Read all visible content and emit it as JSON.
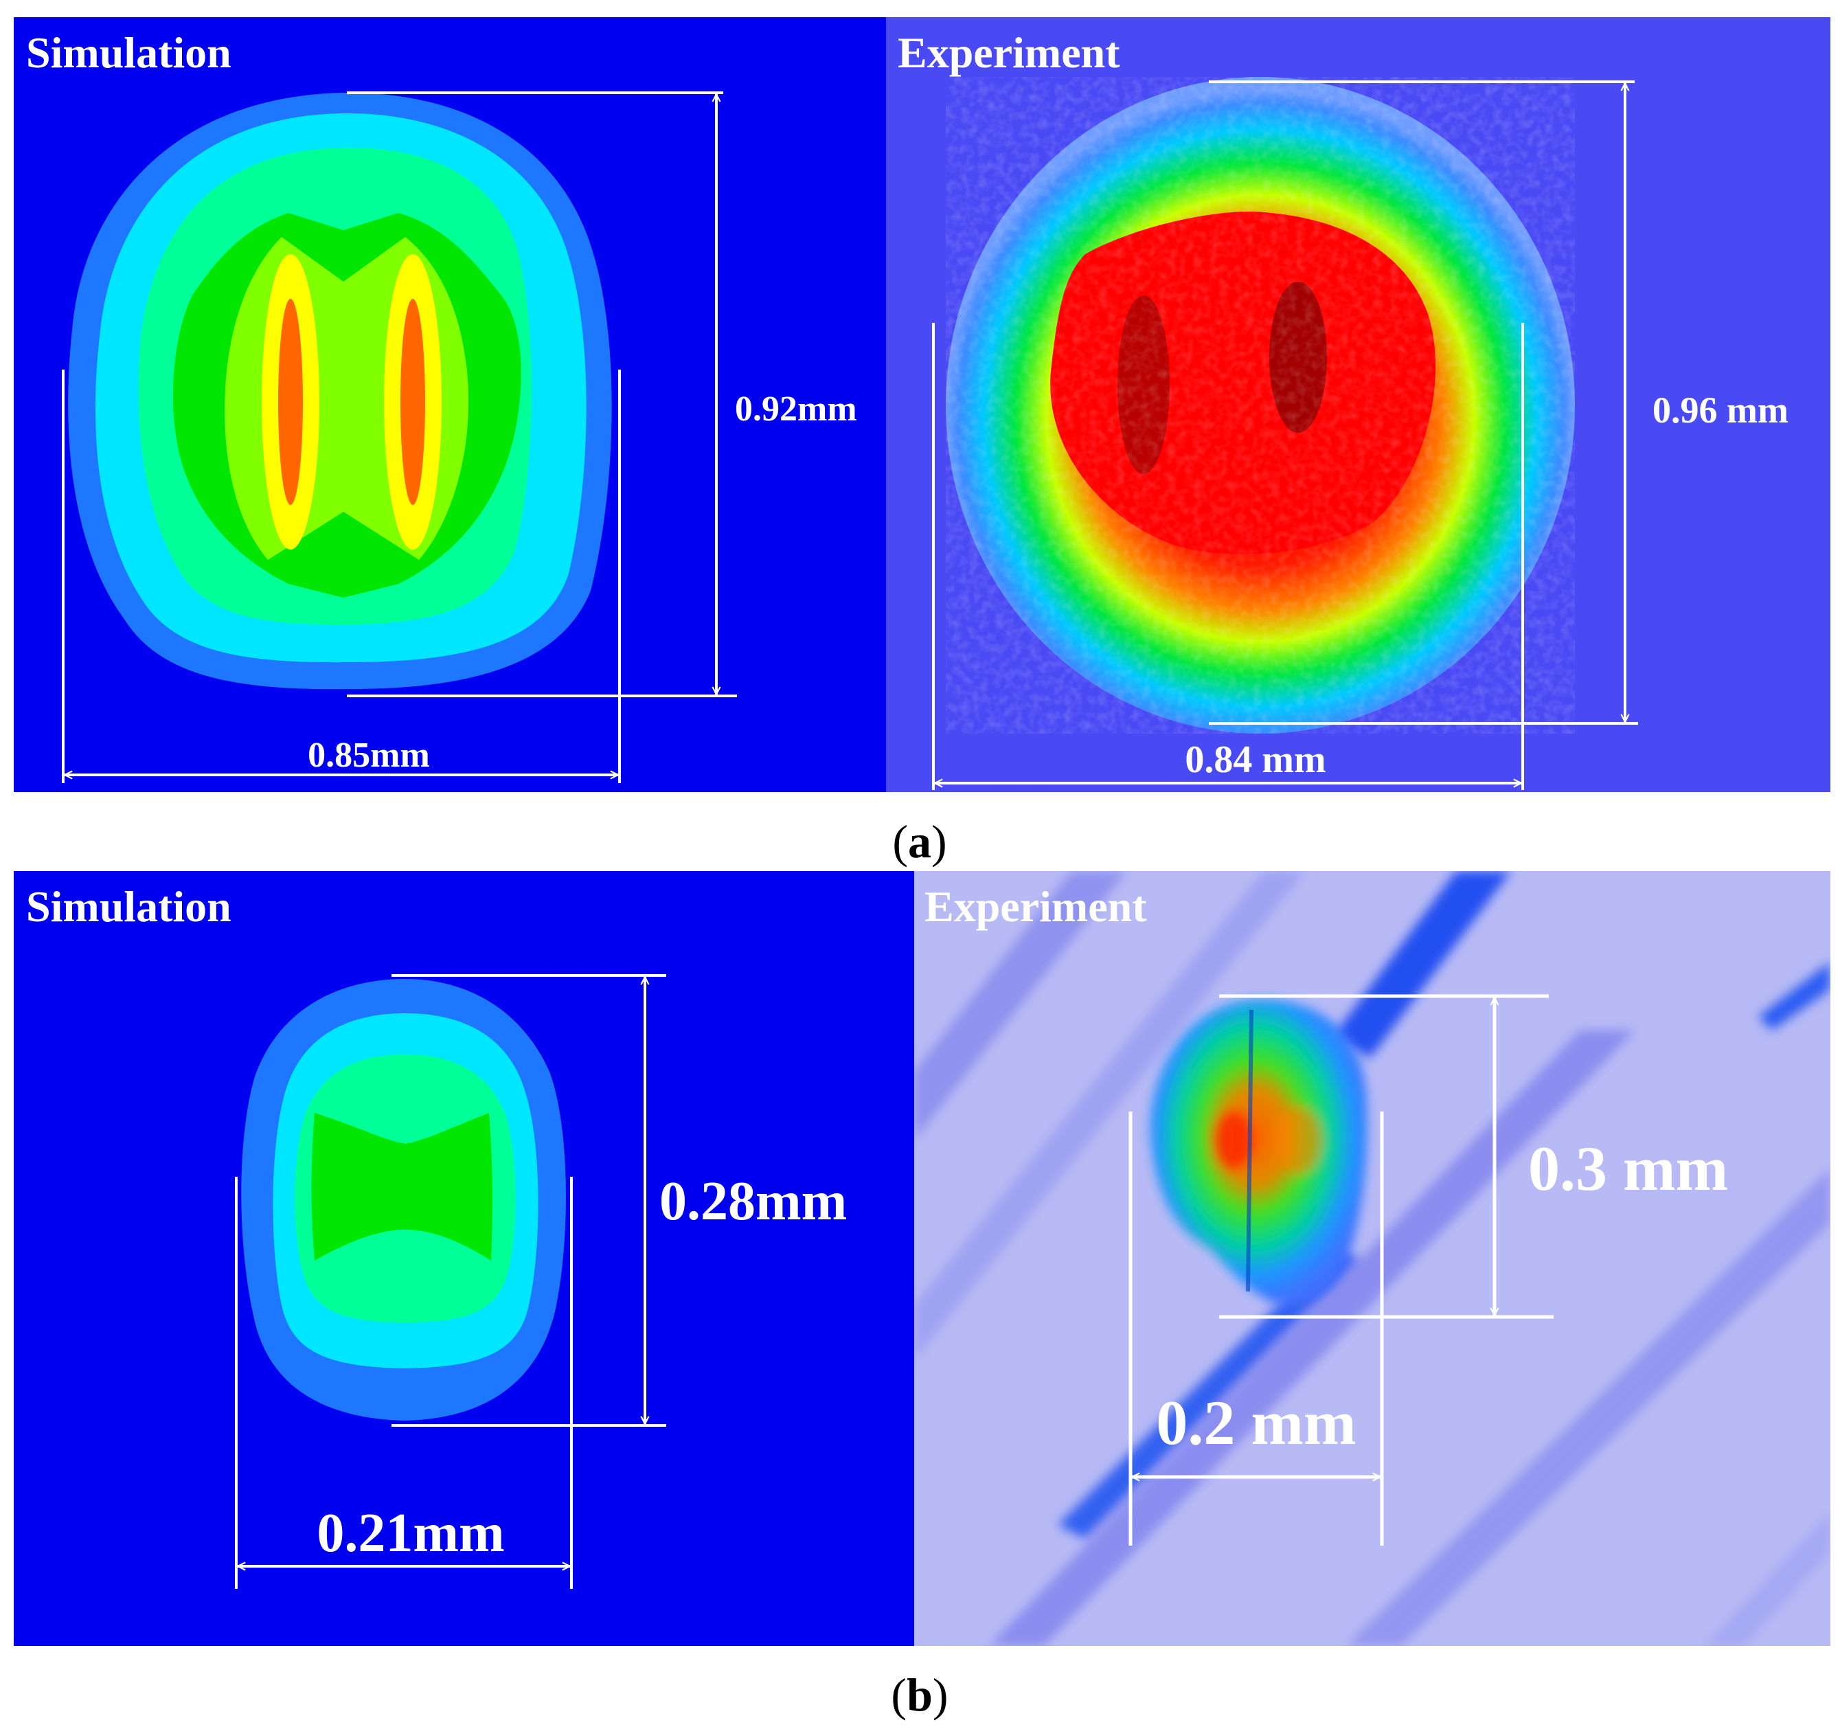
{
  "figure": {
    "a": {
      "caption_letter": "a",
      "simulation": {
        "label": "Simulation",
        "height_label": "0.92mm",
        "width_label": "0.85mm"
      },
      "experiment": {
        "label": "Experiment",
        "height_label": "0.96 mm",
        "width_label": "0.84 mm"
      }
    },
    "b": {
      "caption_letter": "b",
      "simulation": {
        "label": "Simulation",
        "height_label": "0.28mm",
        "width_label": "0.21mm"
      },
      "experiment": {
        "label": "Experiment",
        "height_label": "0.3 mm",
        "width_label": "0.2 mm"
      }
    }
  },
  "colors": {
    "sim_background": "#0000f0",
    "exp_a_background": "#4a4af5",
    "exp_b_background": "#b8baf5",
    "contour_blue": "#1e78ff",
    "contour_cyan": "#00e6ff",
    "contour_aqua": "#00ff96",
    "contour_green": "#00e600",
    "contour_lime": "#80ff00",
    "contour_yellow": "#ffff00",
    "contour_orange": "#ff6600",
    "melt_red": "#ff0000",
    "dimension_line": "#ffffff"
  }
}
